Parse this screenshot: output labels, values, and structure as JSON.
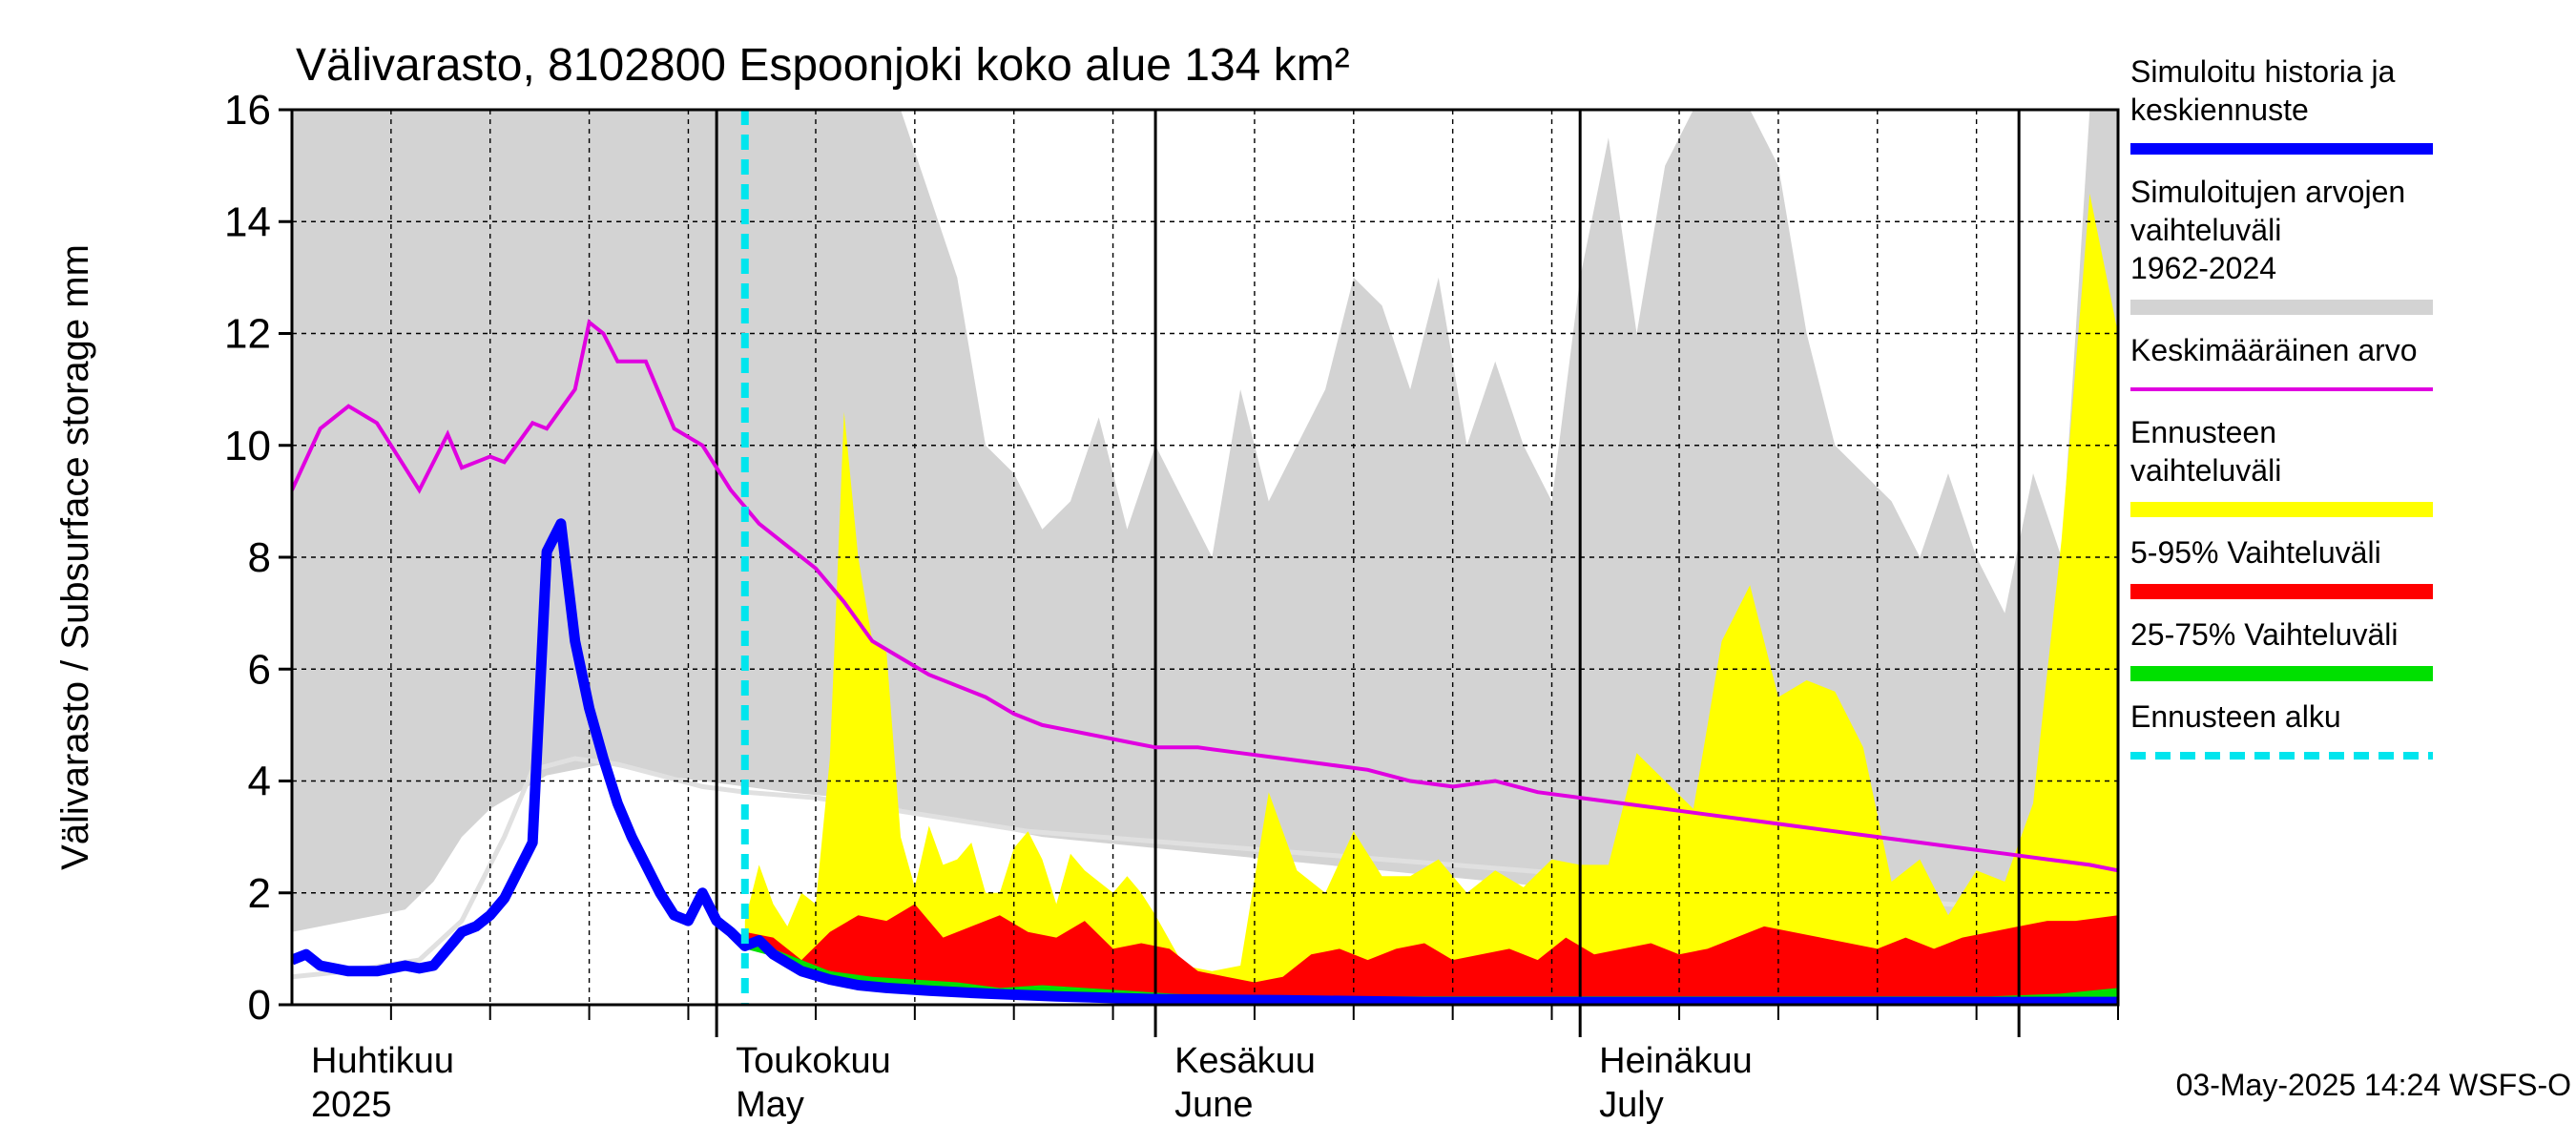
{
  "chart_data": {
    "type": "area",
    "title": "Välivarasto, 8102800 Espoonjoki koko alue 134 km²",
    "ylabel": "Välivarasto / Subsurface storage  mm",
    "ylim": [
      0,
      16
    ],
    "yticks": [
      0,
      2,
      4,
      6,
      8,
      10,
      12,
      14,
      16
    ],
    "x_start": "2025-04-01",
    "x_end": "2025-08-08",
    "forecast_start": "2025-05-03",
    "grid": true,
    "legend_position": "right",
    "month_labels": [
      {
        "date": "2025-04-01",
        "fi": "Huhtikuu",
        "en": "2025"
      },
      {
        "date": "2025-05-01",
        "fi": "Toukokuu",
        "en": "May"
      },
      {
        "date": "2025-06-01",
        "fi": "Kesäkuu",
        "en": "June"
      },
      {
        "date": "2025-07-01",
        "fi": "Heinäkuu",
        "en": "July"
      }
    ],
    "legend": [
      {
        "label": "Simuloitu historia ja keskiennuste",
        "color": "#0000ff",
        "style": "thick"
      },
      {
        "label": "Simuloitujen arvojen vaihteluväli 1962-2024",
        "color": "#d3d3d3",
        "style": "band"
      },
      {
        "label": "Keskimääräinen arvo",
        "color": "#e000e0",
        "style": "line"
      },
      {
        "label": "Ennusteen vaihteluväli",
        "color": "#ffff00",
        "style": "band"
      },
      {
        "label": "5-95% Vaihteluväli",
        "color": "#ff0000",
        "style": "band"
      },
      {
        "label": "25-75% Vaihteluväli",
        "color": "#00e000",
        "style": "band"
      },
      {
        "label": "Ennusteen alku",
        "color": "#00e5ee",
        "style": "dashed"
      }
    ],
    "colors": {
      "history_band": "#d3d3d3",
      "history_median": "#e0e0e0",
      "mean": "#e000e0",
      "forecast_range": "#ffff00",
      "p5_95": "#ff0000",
      "p25_75": "#00e000",
      "simulated": "#0000ff",
      "forecast_start": "#00e5ee"
    },
    "hist_band": {
      "x": [
        "2025-04-01",
        "2025-04-03",
        "2025-04-05",
        "2025-04-07",
        "2025-04-09",
        "2025-04-11",
        "2025-04-13",
        "2025-04-15",
        "2025-04-17",
        "2025-04-19",
        "2025-04-21",
        "2025-04-23",
        "2025-04-25",
        "2025-04-27",
        "2025-04-30",
        "2025-05-03",
        "2025-05-06",
        "2025-05-10",
        "2025-05-14",
        "2025-05-16",
        "2025-05-18",
        "2025-05-20",
        "2025-05-22",
        "2025-05-24",
        "2025-05-26",
        "2025-05-28",
        "2025-05-30",
        "2025-06-01",
        "2025-06-03",
        "2025-06-05",
        "2025-06-07",
        "2025-06-09",
        "2025-06-11",
        "2025-06-13",
        "2025-06-15",
        "2025-06-17",
        "2025-06-19",
        "2025-06-21",
        "2025-06-23",
        "2025-06-25",
        "2025-06-27",
        "2025-06-29",
        "2025-07-01",
        "2025-07-03",
        "2025-07-05",
        "2025-07-07",
        "2025-07-09",
        "2025-07-11",
        "2025-07-13",
        "2025-07-15",
        "2025-07-17",
        "2025-07-19",
        "2025-07-21",
        "2025-07-23",
        "2025-07-25",
        "2025-07-27",
        "2025-07-29",
        "2025-07-31",
        "2025-08-02",
        "2025-08-04",
        "2025-08-06",
        "2025-08-08"
      ],
      "high": [
        16,
        16,
        16,
        16,
        16,
        16,
        16,
        16,
        16,
        16,
        16,
        16,
        16,
        16,
        16,
        16,
        16,
        16,
        16,
        14.5,
        13,
        10,
        9.5,
        8.5,
        9,
        10.5,
        8.5,
        10,
        9,
        8,
        11,
        9,
        10,
        11,
        13,
        12.5,
        11,
        13,
        10,
        11.5,
        10,
        9,
        13,
        15.5,
        12,
        15,
        16,
        16,
        16,
        15,
        12,
        10,
        9.5,
        9,
        8,
        9.5,
        8,
        7,
        9.5,
        8,
        16,
        16
      ],
      "low": [
        1.3,
        1.4,
        1.5,
        1.6,
        1.7,
        2.2,
        3.0,
        3.5,
        3.8,
        4.1,
        4.2,
        4.3,
        4.2,
        4.1,
        4.0,
        3.9,
        3.8,
        3.7,
        3.5,
        3.4,
        3.3,
        3.2,
        3.1,
        3.0,
        2.95,
        2.9,
        2.85,
        2.8,
        2.75,
        2.7,
        2.65,
        2.6,
        2.55,
        2.5,
        2.45,
        2.4,
        2.35,
        2.3,
        2.25,
        2.2,
        2.15,
        2.1,
        2.05,
        2.0,
        1.95,
        1.9,
        1.85,
        1.8,
        1.75,
        1.7,
        1.65,
        1.6,
        1.55,
        1.5,
        1.45,
        1.4,
        1.35,
        1.3,
        1.3,
        1.3,
        1.3,
        1.3
      ]
    },
    "hist_median": {
      "x": [
        "2025-04-01",
        "2025-04-05",
        "2025-04-10",
        "2025-04-13",
        "2025-04-16",
        "2025-04-18",
        "2025-04-21",
        "2025-04-24",
        "2025-04-27",
        "2025-04-30",
        "2025-05-03",
        "2025-05-08",
        "2025-05-13",
        "2025-05-18",
        "2025-05-23",
        "2025-05-28",
        "2025-06-02",
        "2025-06-07",
        "2025-06-12",
        "2025-06-17",
        "2025-06-22",
        "2025-06-27",
        "2025-07-02",
        "2025-07-07",
        "2025-07-12",
        "2025-07-17",
        "2025-07-22",
        "2025-07-27",
        "2025-08-01",
        "2025-08-08"
      ],
      "y": [
        0.5,
        0.6,
        0.8,
        1.5,
        3.0,
        4.2,
        4.4,
        4.3,
        4.1,
        3.9,
        3.8,
        3.7,
        3.5,
        3.3,
        3.1,
        3.0,
        2.9,
        2.8,
        2.7,
        2.6,
        2.5,
        2.4,
        2.3,
        2.2,
        2.1,
        2.0,
        1.9,
        1.8,
        1.7,
        1.6
      ]
    },
    "mean": {
      "x": [
        "2025-04-01",
        "2025-04-03",
        "2025-04-05",
        "2025-04-07",
        "2025-04-08",
        "2025-04-10",
        "2025-04-12",
        "2025-04-13",
        "2025-04-15",
        "2025-04-16",
        "2025-04-18",
        "2025-04-19",
        "2025-04-21",
        "2025-04-22",
        "2025-04-23",
        "2025-04-24",
        "2025-04-26",
        "2025-04-28",
        "2025-04-30",
        "2025-05-02",
        "2025-05-04",
        "2025-05-06",
        "2025-05-08",
        "2025-05-10",
        "2025-05-12",
        "2025-05-14",
        "2025-05-16",
        "2025-05-18",
        "2025-05-20",
        "2025-05-22",
        "2025-05-24",
        "2025-05-26",
        "2025-05-28",
        "2025-05-30",
        "2025-06-01",
        "2025-06-04",
        "2025-06-07",
        "2025-06-10",
        "2025-06-13",
        "2025-06-16",
        "2025-06-19",
        "2025-06-22",
        "2025-06-25",
        "2025-06-28",
        "2025-07-01",
        "2025-07-04",
        "2025-07-07",
        "2025-07-10",
        "2025-07-13",
        "2025-07-16",
        "2025-07-19",
        "2025-07-22",
        "2025-07-25",
        "2025-07-28",
        "2025-07-31",
        "2025-08-03",
        "2025-08-06",
        "2025-08-08"
      ],
      "y": [
        9.2,
        10.3,
        10.7,
        10.4,
        10.0,
        9.2,
        10.2,
        9.6,
        9.8,
        9.7,
        10.4,
        10.3,
        11.0,
        12.2,
        12.0,
        11.5,
        11.5,
        10.3,
        10.0,
        9.2,
        8.6,
        8.2,
        7.8,
        7.2,
        6.5,
        6.2,
        5.9,
        5.7,
        5.5,
        5.2,
        5.0,
        4.9,
        4.8,
        4.7,
        4.6,
        4.6,
        4.5,
        4.4,
        4.3,
        4.2,
        4.0,
        3.9,
        4.0,
        3.8,
        3.7,
        3.6,
        3.5,
        3.4,
        3.3,
        3.2,
        3.1,
        3.0,
        2.9,
        2.8,
        2.7,
        2.6,
        2.5,
        2.4
      ]
    },
    "forecast_range": {
      "x": [
        "2025-05-03",
        "2025-05-04",
        "2025-05-05",
        "2025-05-06",
        "2025-05-07",
        "2025-05-08",
        "2025-05-09",
        "2025-05-10",
        "2025-05-11",
        "2025-05-12",
        "2025-05-13",
        "2025-05-14",
        "2025-05-15",
        "2025-05-16",
        "2025-05-17",
        "2025-05-18",
        "2025-05-19",
        "2025-05-20",
        "2025-05-21",
        "2025-05-22",
        "2025-05-23",
        "2025-05-24",
        "2025-05-25",
        "2025-05-26",
        "2025-05-27",
        "2025-05-28",
        "2025-05-29",
        "2025-05-30",
        "2025-05-31",
        "2025-06-01",
        "2025-06-03",
        "2025-06-05",
        "2025-06-07",
        "2025-06-09",
        "2025-06-11",
        "2025-06-13",
        "2025-06-15",
        "2025-06-17",
        "2025-06-19",
        "2025-06-21",
        "2025-06-23",
        "2025-06-25",
        "2025-06-27",
        "2025-06-29",
        "2025-07-01",
        "2025-07-03",
        "2025-07-05",
        "2025-07-07",
        "2025-07-09",
        "2025-07-11",
        "2025-07-13",
        "2025-07-15",
        "2025-07-17",
        "2025-07-19",
        "2025-07-21",
        "2025-07-23",
        "2025-07-25",
        "2025-07-27",
        "2025-07-29",
        "2025-07-31",
        "2025-08-02",
        "2025-08-04",
        "2025-08-06",
        "2025-08-08"
      ],
      "high": [
        1.5,
        2.5,
        1.8,
        1.4,
        2.0,
        1.8,
        4.4,
        10.6,
        8.0,
        6.5,
        6.3,
        3.0,
        2.1,
        3.2,
        2.5,
        2.6,
        2.9,
        2.0,
        2.0,
        2.8,
        3.1,
        2.6,
        1.8,
        2.7,
        2.4,
        2.2,
        2.0,
        2.3,
        2.0,
        1.6,
        0.7,
        0.6,
        0.7,
        3.8,
        2.4,
        2.0,
        3.1,
        2.3,
        2.3,
        2.6,
        2.0,
        2.4,
        2.1,
        2.6,
        2.5,
        2.5,
        4.5,
        4.0,
        3.5,
        6.5,
        7.5,
        5.5,
        5.8,
        5.6,
        4.6,
        2.2,
        2.6,
        1.6,
        2.4,
        2.2,
        3.6,
        8.3,
        14.5,
        12.0
      ],
      "low": [
        1.0,
        1.0,
        0.9,
        0.8,
        0.7,
        0.7,
        0.6,
        0.6,
        0.5,
        0.5,
        0.4,
        0.4,
        0.35,
        0.3,
        0.3,
        0.25,
        0.25,
        0.2,
        0.2,
        0.2,
        0.2,
        0.15,
        0.15,
        0.15,
        0.15,
        0.1,
        0.1,
        0.1,
        0.1,
        0.1,
        0.1,
        0.1,
        0.1,
        0.1,
        0.1,
        0.1,
        0.1,
        0.1,
        0.1,
        0.1,
        0.1,
        0.1,
        0.1,
        0.1,
        0.1,
        0.1,
        0.1,
        0.1,
        0.1,
        0.1,
        0.1,
        0.1,
        0.1,
        0.1,
        0.1,
        0.1,
        0.1,
        0.1,
        0.1,
        0.1,
        0.1,
        0.1,
        0.1,
        0.1
      ]
    },
    "p5_95": {
      "x": [
        "2025-05-03",
        "2025-05-05",
        "2025-05-07",
        "2025-05-09",
        "2025-05-11",
        "2025-05-13",
        "2025-05-15",
        "2025-05-17",
        "2025-05-19",
        "2025-05-21",
        "2025-05-23",
        "2025-05-25",
        "2025-05-27",
        "2025-05-29",
        "2025-05-31",
        "2025-06-02",
        "2025-06-04",
        "2025-06-06",
        "2025-06-08",
        "2025-06-10",
        "2025-06-12",
        "2025-06-14",
        "2025-06-16",
        "2025-06-18",
        "2025-06-20",
        "2025-06-22",
        "2025-06-24",
        "2025-06-26",
        "2025-06-28",
        "2025-06-30",
        "2025-07-02",
        "2025-07-04",
        "2025-07-06",
        "2025-07-08",
        "2025-07-10",
        "2025-07-12",
        "2025-07-14",
        "2025-07-16",
        "2025-07-18",
        "2025-07-20",
        "2025-07-22",
        "2025-07-24",
        "2025-07-26",
        "2025-07-28",
        "2025-07-30",
        "2025-08-01",
        "2025-08-03",
        "2025-08-05",
        "2025-08-08"
      ],
      "high": [
        1.3,
        1.2,
        0.8,
        1.3,
        1.6,
        1.5,
        1.8,
        1.2,
        1.4,
        1.6,
        1.3,
        1.2,
        1.5,
        1.0,
        1.1,
        1.0,
        0.6,
        0.5,
        0.4,
        0.5,
        0.9,
        1.0,
        0.8,
        1.0,
        1.1,
        0.8,
        0.9,
        1.0,
        0.8,
        1.2,
        0.9,
        1.0,
        1.1,
        0.9,
        1.0,
        1.2,
        1.4,
        1.3,
        1.2,
        1.1,
        1.0,
        1.2,
        1.0,
        1.2,
        1.3,
        1.4,
        1.5,
        1.5,
        1.6
      ],
      "low": [
        1.0,
        0.9,
        0.7,
        0.6,
        0.5,
        0.4,
        0.35,
        0.3,
        0.25,
        0.2,
        0.2,
        0.15,
        0.15,
        0.12,
        0.1,
        0.1,
        0.1,
        0.1,
        0.1,
        0.1,
        0.1,
        0.1,
        0.1,
        0.1,
        0.1,
        0.1,
        0.1,
        0.1,
        0.1,
        0.1,
        0.1,
        0.1,
        0.1,
        0.1,
        0.1,
        0.1,
        0.1,
        0.1,
        0.1,
        0.1,
        0.1,
        0.1,
        0.1,
        0.1,
        0.1,
        0.1,
        0.1,
        0.1,
        0.1
      ]
    },
    "p25_75": {
      "x": [
        "2025-05-03",
        "2025-05-06",
        "2025-05-09",
        "2025-05-12",
        "2025-05-15",
        "2025-05-18",
        "2025-05-21",
        "2025-05-24",
        "2025-05-27",
        "2025-05-30",
        "2025-06-02",
        "2025-06-06",
        "2025-06-10",
        "2025-06-15",
        "2025-06-20",
        "2025-06-25",
        "2025-06-30",
        "2025-07-05",
        "2025-07-10",
        "2025-07-15",
        "2025-07-20",
        "2025-07-25",
        "2025-07-30",
        "2025-08-04",
        "2025-08-08"
      ],
      "high": [
        1.2,
        0.9,
        0.6,
        0.5,
        0.45,
        0.4,
        0.3,
        0.35,
        0.3,
        0.25,
        0.2,
        0.15,
        0.15,
        0.15,
        0.15,
        0.15,
        0.15,
        0.15,
        0.15,
        0.15,
        0.15,
        0.15,
        0.15,
        0.2,
        0.3
      ],
      "low": [
        1.0,
        0.8,
        0.5,
        0.35,
        0.3,
        0.25,
        0.2,
        0.15,
        0.12,
        0.1,
        0.1,
        0.1,
        0.1,
        0.1,
        0.1,
        0.1,
        0.1,
        0.1,
        0.1,
        0.1,
        0.1,
        0.1,
        0.1,
        0.1,
        0.1
      ]
    },
    "simulated": {
      "x": [
        "2025-04-01",
        "2025-04-02",
        "2025-04-03",
        "2025-04-05",
        "2025-04-07",
        "2025-04-09",
        "2025-04-10",
        "2025-04-11",
        "2025-04-12",
        "2025-04-13",
        "2025-04-14",
        "2025-04-15",
        "2025-04-16",
        "2025-04-17",
        "2025-04-18",
        "2025-04-19",
        "2025-04-20",
        "2025-04-21",
        "2025-04-22",
        "2025-04-23",
        "2025-04-24",
        "2025-04-25",
        "2025-04-26",
        "2025-04-27",
        "2025-04-28",
        "2025-04-29",
        "2025-04-30",
        "2025-05-01",
        "2025-05-02",
        "2025-05-03",
        "2025-05-04",
        "2025-05-05",
        "2025-05-06",
        "2025-05-07",
        "2025-05-09",
        "2025-05-11",
        "2025-05-13",
        "2025-05-16",
        "2025-05-20",
        "2025-05-25",
        "2025-06-01",
        "2025-06-10",
        "2025-06-20",
        "2025-07-01",
        "2025-07-15",
        "2025-08-01",
        "2025-08-08"
      ],
      "y": [
        0.8,
        0.9,
        0.7,
        0.6,
        0.6,
        0.7,
        0.65,
        0.7,
        1.0,
        1.3,
        1.4,
        1.6,
        1.9,
        2.4,
        2.9,
        8.1,
        8.6,
        6.5,
        5.3,
        4.4,
        3.6,
        3.0,
        2.5,
        2.0,
        1.6,
        1.5,
        2.0,
        1.5,
        1.3,
        1.05,
        1.15,
        0.9,
        0.75,
        0.6,
        0.45,
        0.35,
        0.3,
        0.25,
        0.2,
        0.15,
        0.1,
        0.08,
        0.05,
        0.05,
        0.05,
        0.05,
        0.05
      ]
    }
  },
  "footer": "03-May-2025 14:24 WSFS-O"
}
